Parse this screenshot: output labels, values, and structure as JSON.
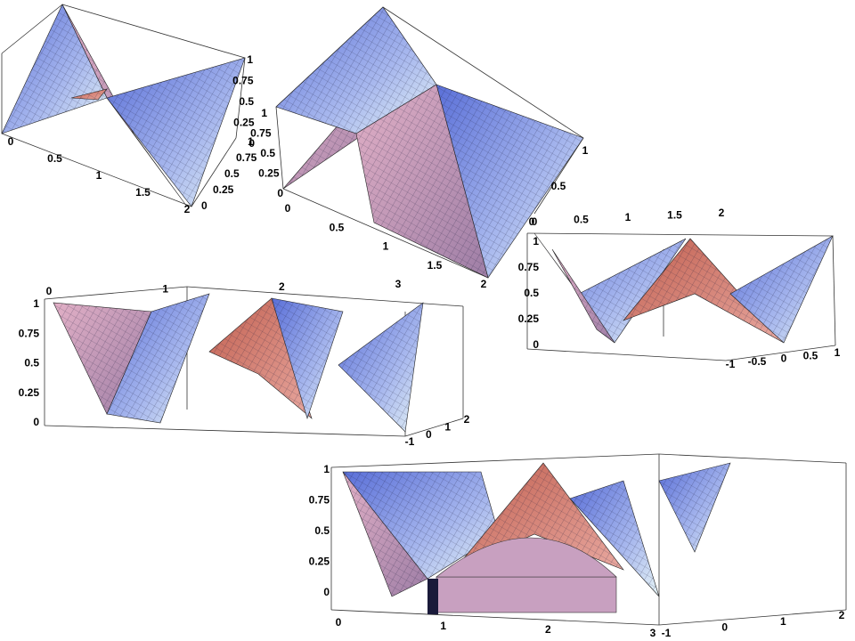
{
  "plots": [
    {
      "x_ticks": [
        "0",
        "0.5",
        "1",
        "1.5",
        "2"
      ],
      "y_ticks": [
        "0",
        "0.25",
        "0.5",
        "0.75",
        "1"
      ],
      "z_ticks": [
        "0",
        "0.25",
        "0.5",
        "0.75",
        "1"
      ]
    },
    {
      "x_ticks": [
        "0",
        "0.5",
        "1",
        "1.5",
        "2"
      ],
      "y_ticks": [
        "0",
        "0.5",
        "1"
      ],
      "z_ticks": [
        "0",
        "0.25",
        "0.5",
        "0.75",
        "1"
      ]
    },
    {
      "x_ticks": [
        "0",
        "0.5",
        "1",
        "1.5",
        "2"
      ],
      "y_ticks": [
        "-1",
        "-0.5",
        "0",
        "0.5",
        "1"
      ],
      "z_ticks": [
        "0",
        "0.25",
        "0.5",
        "0.75",
        "1"
      ]
    },
    {
      "x_ticks": [
        "0",
        "1",
        "2",
        "3"
      ],
      "y_ticks": [
        "-1",
        "0",
        "1",
        "2"
      ],
      "z_ticks": [
        "0",
        "0.25",
        "0.5",
        "0.75",
        "1"
      ]
    },
    {
      "x_ticks": [
        "0",
        "1",
        "2",
        "3"
      ],
      "y_ticks": [
        "-1",
        "0",
        "1",
        "2"
      ],
      "z_ticks": [
        "0",
        "0.25",
        "0.5",
        "0.75",
        "1"
      ]
    }
  ]
}
